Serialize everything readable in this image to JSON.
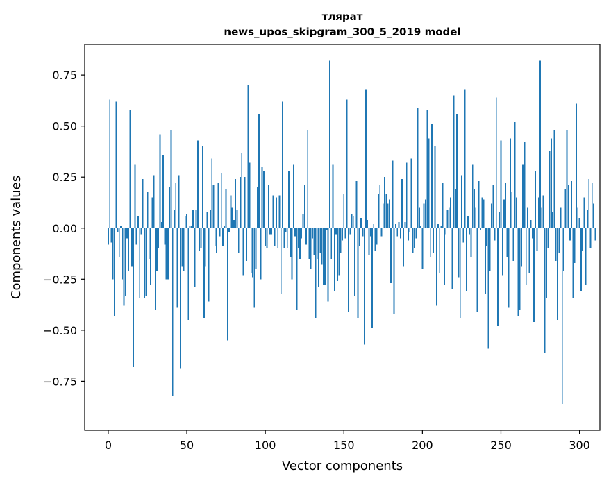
{
  "chart_data": {
    "type": "bar",
    "title_line1": "тлярат",
    "title_line2": "news_upos_skipgram_300_5_2019 model",
    "xlabel": "Vector components",
    "ylabel": "Components values",
    "xlim": [
      -15,
      313
    ],
    "ylim": [
      -0.99,
      0.9
    ],
    "xticks": [
      0,
      50,
      100,
      150,
      200,
      250,
      300
    ],
    "xtick_labels": [
      "0",
      "50",
      "100",
      "150",
      "200",
      "250",
      "300"
    ],
    "yticks": [
      0.75,
      0.5,
      0.25,
      0.0,
      -0.25,
      -0.5,
      -0.75
    ],
    "ytick_labels": [
      "0.75",
      "0.50",
      "0.25",
      "0.00",
      "−0.25",
      "−0.50",
      "−0.75"
    ],
    "bar_color": "#1f77b4",
    "values": [
      -0.08,
      0.63,
      -0.07,
      -0.25,
      -0.43,
      0.62,
      -0.02,
      -0.14,
      0.01,
      -0.25,
      -0.38,
      -0.33,
      -0.05,
      -0.21,
      0.58,
      -0.19,
      -0.68,
      0.31,
      -0.08,
      0.06,
      -0.34,
      -0.03,
      0.24,
      -0.34,
      -0.33,
      0.18,
      -0.15,
      -0.28,
      0.15,
      0.26,
      -0.4,
      -0.21,
      -0.1,
      0.46,
      0.03,
      0.36,
      -0.08,
      -0.25,
      -0.25,
      0.2,
      0.48,
      -0.82,
      0.09,
      0.22,
      -0.39,
      0.26,
      -0.69,
      -0.19,
      -0.21,
      0.06,
      0.07,
      -0.45,
      0.01,
      0.01,
      0.09,
      -0.29,
      0.09,
      0.43,
      -0.11,
      -0.1,
      0.4,
      -0.44,
      -0.19,
      0.08,
      -0.36,
      0.09,
      0.34,
      0.21,
      -0.09,
      -0.12,
      0.22,
      -0.04,
      0.27,
      -0.09,
      0.01,
      0.19,
      -0.55,
      -0.02,
      0.16,
      0.1,
      0.04,
      0.24,
      0.09,
      -0.12,
      0.25,
      0.37,
      -0.23,
      0.25,
      -0.16,
      0.7,
      0.32,
      -0.22,
      -0.24,
      -0.39,
      -0.2,
      0.2,
      0.56,
      -0.25,
      0.3,
      0.28,
      -0.09,
      -0.1,
      0.21,
      -0.03,
      -0.03,
      0.16,
      -0.09,
      0.15,
      -0.1,
      0.16,
      -0.32,
      0.62,
      -0.1,
      -0.02,
      -0.1,
      0.28,
      -0.14,
      -0.25,
      0.31,
      -0.04,
      -0.4,
      -0.1,
      -0.15,
      -0.05,
      0.07,
      0.21,
      -0.08,
      0.48,
      -0.15,
      -0.2,
      -0.05,
      -0.13,
      -0.44,
      -0.15,
      -0.29,
      -0.12,
      -0.18,
      -0.28,
      -0.28,
      -0.01,
      -0.36,
      0.82,
      -0.15,
      0.31,
      -0.31,
      -0.03,
      -0.26,
      -0.23,
      -0.12,
      -0.06,
      0.17,
      -0.05,
      0.63,
      -0.41,
      -0.03,
      0.07,
      0.06,
      -0.33,
      0.23,
      -0.44,
      -0.09,
      0.05,
      -0.04,
      -0.57,
      0.68,
      0.04,
      -0.13,
      -0.04,
      -0.49,
      0.02,
      -0.11,
      -0.08,
      0.17,
      0.21,
      -0.04,
      0.12,
      0.25,
      0.17,
      0.12,
      0.14,
      -0.27,
      0.33,
      -0.42,
      0.02,
      -0.04,
      0.03,
      -0.05,
      0.24,
      -0.19,
      0.03,
      0.32,
      -0.06,
      -0.02,
      0.34,
      -0.12,
      -0.1,
      -0.05,
      0.59,
      0.1,
      0.01,
      -0.2,
      0.12,
      0.14,
      0.58,
      0.44,
      -0.14,
      0.51,
      -0.12,
      0.4,
      -0.38,
      0.02,
      -0.22,
      0.01,
      0.22,
      -0.28,
      -0.03,
      0.09,
      0.1,
      0.15,
      -0.3,
      0.65,
      0.19,
      0.56,
      -0.24,
      -0.44,
      0.26,
      -0.07,
      0.68,
      -0.31,
      0.06,
      -0.03,
      -0.14,
      0.31,
      0.19,
      0.1,
      -0.41,
      0.23,
      -0.01,
      0.15,
      0.14,
      -0.32,
      -0.09,
      -0.59,
      -0.21,
      0.12,
      0.21,
      -0.06,
      0.64,
      -0.48,
      0.08,
      0.43,
      -0.23,
      0.14,
      0.22,
      -0.14,
      -0.39,
      0.44,
      0.18,
      -0.16,
      0.52,
      0.15,
      -0.43,
      -0.4,
      -0.19,
      0.31,
      0.42,
      -0.28,
      0.1,
      -0.22,
      0.04,
      -0.05,
      -0.46,
      0.28,
      -0.11,
      0.15,
      0.82,
      0.1,
      0.16,
      -0.61,
      -0.34,
      -0.1,
      0.38,
      0.44,
      0.08,
      0.48,
      -0.16,
      -0.45,
      -0.12,
      0.1,
      -0.86,
      -0.21,
      0.19,
      0.48,
      0.21,
      -0.06,
      0.23,
      -0.34,
      -0.17,
      0.61,
      0.1,
      0.05,
      -0.31,
      -0.11,
      0.15,
      -0.28,
      0.09,
      0.24,
      -0.1,
      0.22,
      0.12,
      -0.06
    ]
  }
}
